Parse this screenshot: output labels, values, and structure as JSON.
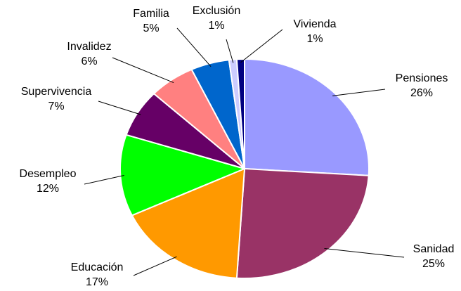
{
  "chart_data": {
    "type": "pie",
    "categories": [
      "Pensiones",
      "Sanidad",
      "Educación",
      "Desempleo",
      "Supervivencia",
      "Invalidez",
      "Familia",
      "Exclusión",
      "Vivienda"
    ],
    "values": [
      26,
      25,
      17,
      12,
      7,
      6,
      5,
      1,
      1
    ],
    "value_labels": [
      "26%",
      "25%",
      "17%",
      "12%",
      "7%",
      "6%",
      "5%",
      "1%",
      "1%"
    ],
    "colors": [
      "#9999ff",
      "#993366",
      "#ff9900",
      "#00ff00",
      "#660066",
      "#ff8080",
      "#0066cc",
      "#ccccff",
      "#000080"
    ]
  }
}
